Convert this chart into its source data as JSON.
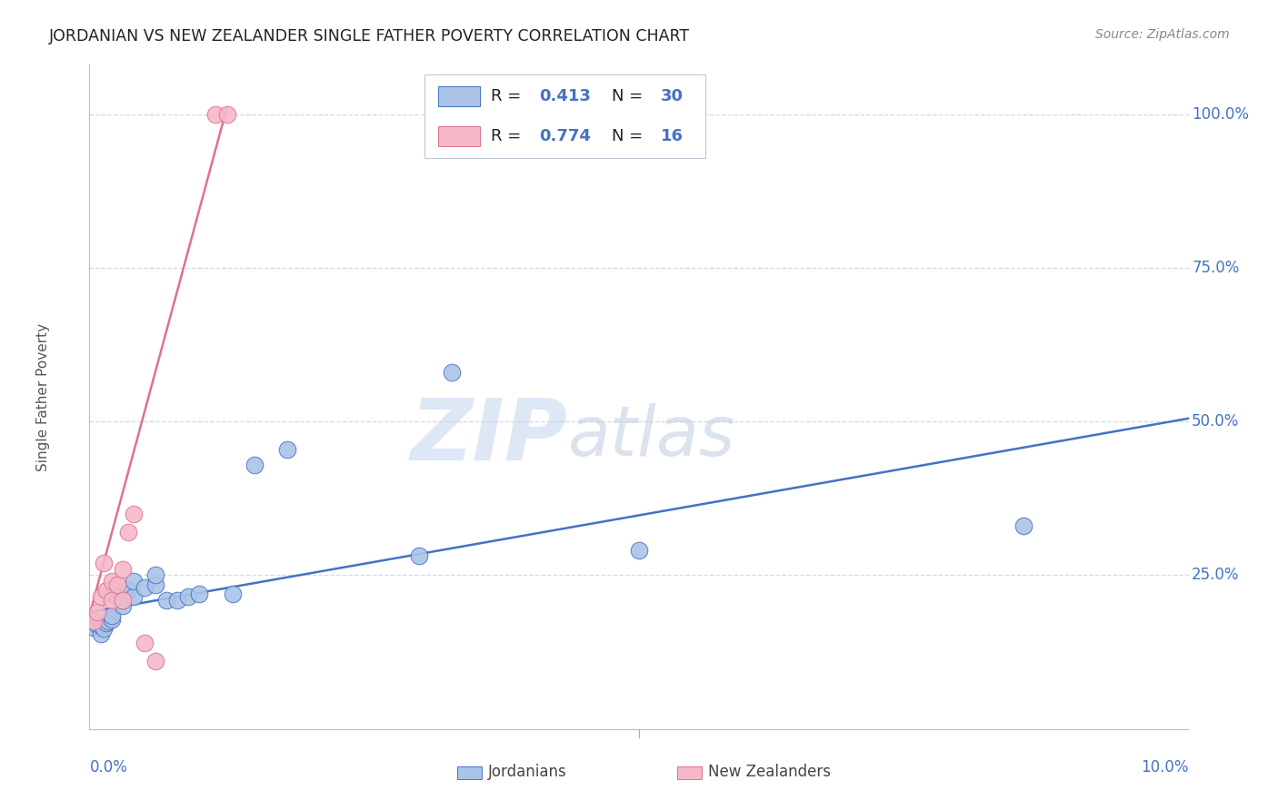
{
  "title": "JORDANIAN VS NEW ZEALANDER SINGLE FATHER POVERTY CORRELATION CHART",
  "source": "Source: ZipAtlas.com",
  "ylabel": "Single Father Poverty",
  "xlim": [
    0.0,
    0.1
  ],
  "ylim": [
    0.0,
    1.08
  ],
  "blue_color": "#aac4e8",
  "pink_color": "#f4b8c8",
  "blue_line_color": "#4472c4",
  "pink_line_color": "#e07090",
  "R_blue": 0.413,
  "N_blue": 30,
  "R_pink": 0.774,
  "N_pink": 16,
  "jordanians_x": [
    0.0004,
    0.0007,
    0.001,
    0.001,
    0.0013,
    0.0015,
    0.0017,
    0.002,
    0.002,
    0.002,
    0.0025,
    0.003,
    0.003,
    0.0035,
    0.004,
    0.004,
    0.005,
    0.006,
    0.006,
    0.007,
    0.008,
    0.009,
    0.01,
    0.013,
    0.015,
    0.018,
    0.03,
    0.033,
    0.05,
    0.085
  ],
  "jordanians_y": [
    0.165,
    0.17,
    0.155,
    0.168,
    0.163,
    0.172,
    0.175,
    0.178,
    0.185,
    0.22,
    0.215,
    0.2,
    0.21,
    0.225,
    0.215,
    0.24,
    0.23,
    0.235,
    0.25,
    0.21,
    0.21,
    0.215,
    0.22,
    0.22,
    0.43,
    0.455,
    0.282,
    0.58,
    0.29,
    0.33
  ],
  "nzlanders_x": [
    0.0004,
    0.0007,
    0.001,
    0.0013,
    0.0015,
    0.002,
    0.002,
    0.0025,
    0.003,
    0.003,
    0.0035,
    0.004,
    0.005,
    0.006,
    0.0115,
    0.0125
  ],
  "nzlanders_y": [
    0.175,
    0.19,
    0.215,
    0.27,
    0.225,
    0.21,
    0.24,
    0.235,
    0.26,
    0.21,
    0.32,
    0.35,
    0.14,
    0.11,
    1.0,
    1.0
  ],
  "blue_line_x0": 0.0,
  "blue_line_y0": 0.19,
  "blue_line_x1": 0.1,
  "blue_line_y1": 0.505,
  "pink_line_x0": 0.0,
  "pink_line_y0": 0.185,
  "pink_line_x1": 0.0125,
  "pink_line_y1": 1.01,
  "watermark_zip": "ZIP",
  "watermark_atlas": "atlas",
  "background_color": "#ffffff",
  "grid_color": "#d0d8e8",
  "title_color": "#222222",
  "axis_label_color": "#4472c4",
  "source_color": "#888888",
  "ylabel_color": "#555555",
  "legend_text_color": "#222222",
  "ytick_vals": [
    0.25,
    0.5,
    0.75,
    1.0
  ],
  "ytick_labels": [
    "25.0%",
    "50.0%",
    "75.0%",
    "100.0%"
  ]
}
